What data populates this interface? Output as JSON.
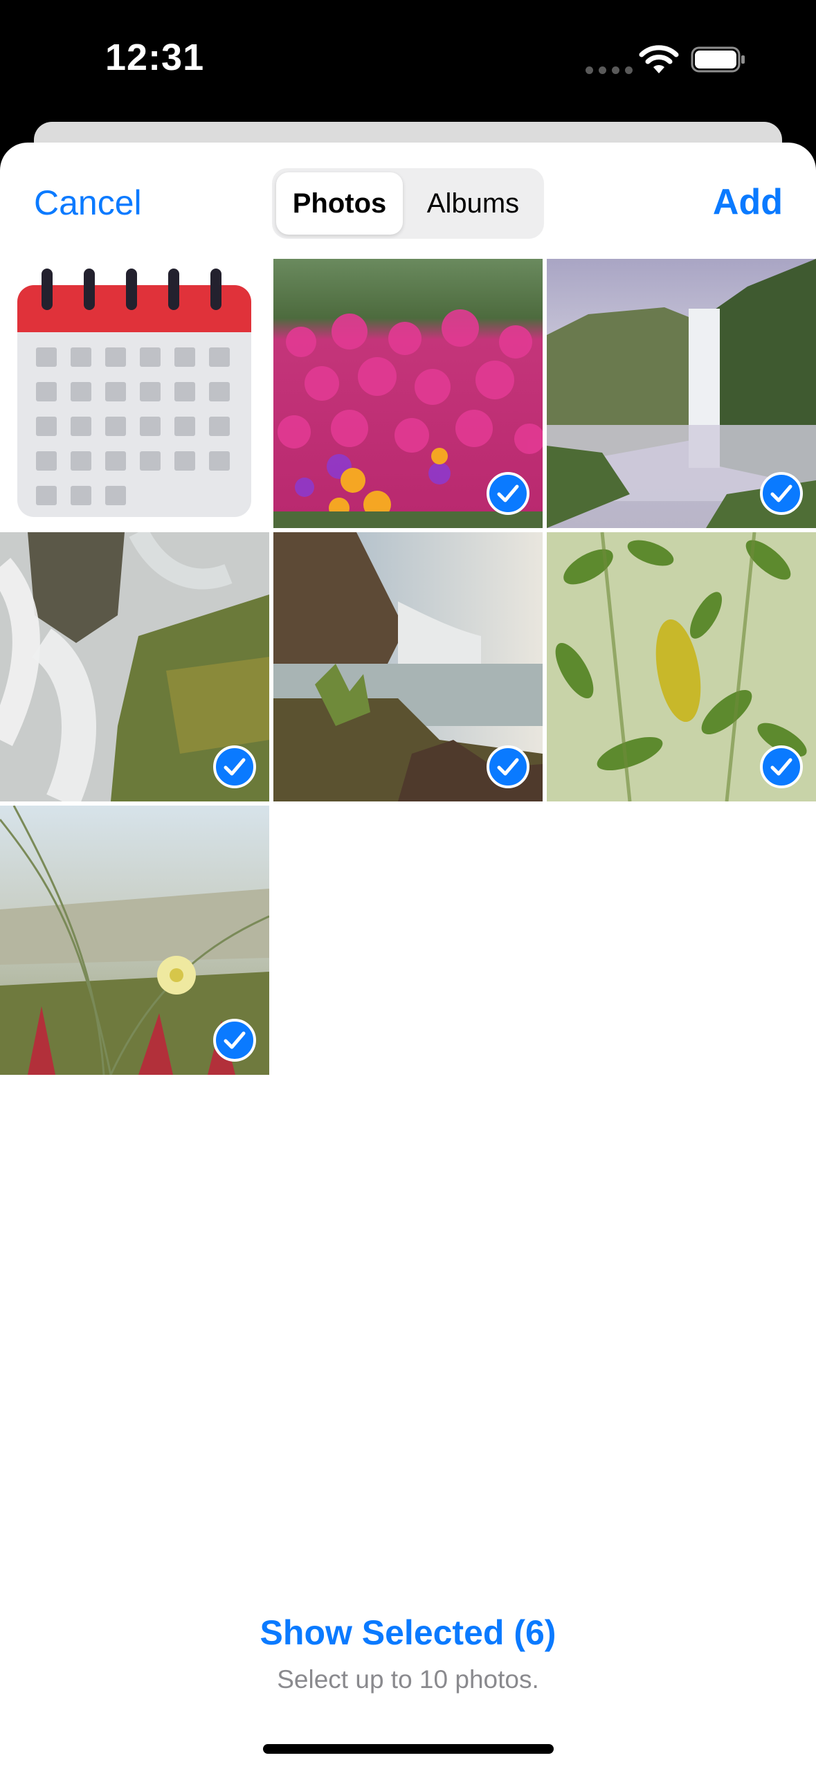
{
  "status_bar": {
    "time": "12:31"
  },
  "nav": {
    "cancel_label": "Cancel",
    "add_label": "Add"
  },
  "segmented_control": {
    "selected": "Photos",
    "items": [
      "Photos",
      "Albums"
    ]
  },
  "grid": {
    "items": [
      {
        "kind": "calendar-icon",
        "selected": false
      },
      {
        "kind": "photo-pink-flowers",
        "selected": true
      },
      {
        "kind": "photo-waterfall-cliff",
        "selected": true
      },
      {
        "kind": "photo-rushing-water-rocks",
        "selected": true
      },
      {
        "kind": "photo-waterfall-river",
        "selected": true
      },
      {
        "kind": "photo-green-leaves",
        "selected": true
      },
      {
        "kind": "photo-beach-grass-flower",
        "selected": true
      }
    ]
  },
  "footer": {
    "show_selected_label": "Show Selected (6)",
    "limit_note": "Select up to 10 photos."
  },
  "colors": {
    "accent": "#0A7AFF",
    "check_fill": "#0A7AFF",
    "calendar_red": "#E0323A"
  }
}
